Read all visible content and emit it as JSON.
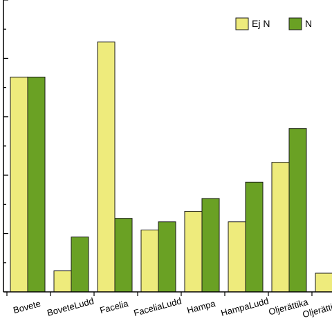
{
  "chart_data": {
    "type": "bar",
    "categories": [
      "Bovete",
      "BoveteLudd",
      "Facelia",
      "FaceliaLudd",
      "Hampa",
      "HampaLudd",
      "Oljerättika",
      "OljerättikaLudd"
    ],
    "series": [
      {
        "name": "Ej N",
        "color": "#eeeb7c",
        "values": [
          92,
          9,
          107,
          26.5,
          34.5,
          30,
          55.5,
          8
        ]
      },
      {
        "name": "N",
        "color": "#6aa124",
        "values": [
          92,
          23.5,
          31.5,
          30,
          40,
          47,
          70,
          null
        ]
      }
    ],
    "ylim": [
      0,
      125
    ],
    "title": "",
    "xlabel": "",
    "ylabel": "",
    "legend_position": "top-right",
    "grid": false
  }
}
